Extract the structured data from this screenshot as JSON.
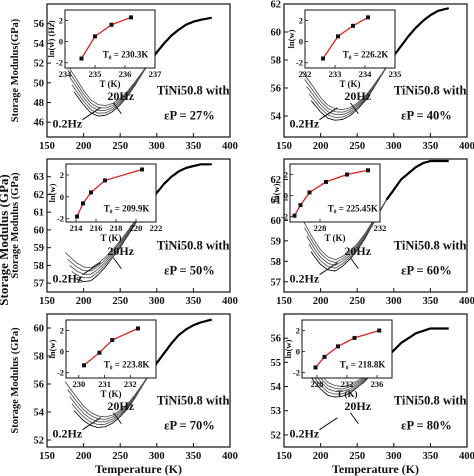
{
  "figure": {
    "ylabel_left": "Storage Modulus (GPa)",
    "xlabel": "Temperature (K)"
  },
  "chart_data": [
    {
      "type": "line",
      "panel": "a",
      "xlim": [
        150,
        400
      ],
      "xticks": [
        150,
        200,
        250,
        300,
        350,
        400
      ],
      "ylim": [
        44.5,
        58
      ],
      "yticks": [
        46,
        48,
        50,
        52,
        54,
        56
      ],
      "xlabel": "",
      "ylabel": "Storage Modulus(GPa)",
      "annotation_alloy": "TiNi50.8 with",
      "annotation_strain": "εP = 27%",
      "freq_high": "20Hz",
      "freq_low": "0.2Hz",
      "curves": {
        "x": [
          175,
          190,
          200,
          210,
          220,
          230,
          240,
          250,
          260,
          270,
          280,
          290,
          300,
          310,
          320,
          330,
          340,
          350,
          360,
          375
        ],
        "y": [
          51.2,
          49.6,
          48.5,
          47.6,
          47.2,
          47.2,
          47.5,
          48.1,
          48.9,
          49.9,
          51,
          52.1,
          53.1,
          54,
          54.8,
          55.4,
          55.9,
          56.2,
          56.4,
          56.6
        ]
      },
      "n_curves": 5,
      "inset": {
        "xlabel": "T (K)",
        "ylabel": "ln(w) (Hz)",
        "xlim": [
          234,
          237
        ],
        "xticks": [
          234,
          235,
          236,
          237
        ],
        "ylim": [
          -2.5,
          3
        ],
        "yticks": [
          -2,
          0,
          2
        ],
        "label": "T₀ = 230.3K",
        "x": [
          234.55,
          235.0,
          235.55,
          236.2
        ],
        "y": [
          -1.6,
          0.5,
          1.6,
          2.3
        ]
      }
    },
    {
      "type": "line",
      "panel": "b",
      "xlim": [
        150,
        400
      ],
      "xticks": [
        150,
        200,
        250,
        300,
        350,
        400
      ],
      "ylim": [
        52.5,
        62
      ],
      "yticks": [
        54,
        56,
        58,
        60,
        62
      ],
      "xlabel": "",
      "ylabel": "",
      "annotation_alloy": "TiNi50.8 with",
      "annotation_strain": "εP = 40%",
      "freq_high": "20Hz",
      "freq_low": "0.2Hz",
      "curves": {
        "x": [
          175,
          190,
          200,
          210,
          220,
          230,
          240,
          250,
          260,
          270,
          280,
          290,
          300,
          310,
          320,
          330,
          340,
          350,
          360,
          375
        ],
        "y": [
          56.5,
          55.5,
          54.8,
          54.3,
          54.1,
          54.1,
          54.3,
          54.7,
          55.2,
          55.9,
          56.7,
          57.5,
          58.3,
          59,
          59.7,
          60.3,
          60.8,
          61.2,
          61.5,
          61.7
        ]
      },
      "n_curves": 5,
      "inset": {
        "xlabel": "T (K)",
        "ylabel": "ln(w)",
        "xlim": [
          232,
          235
        ],
        "xticks": [
          232,
          233,
          234,
          235
        ],
        "ylim": [
          -2.5,
          3
        ],
        "yticks": [
          -2,
          0,
          2
        ],
        "label": "T₀ = 226.2K",
        "x": [
          232.6,
          233.1,
          233.6,
          234.1
        ],
        "y": [
          -1.6,
          0.5,
          1.5,
          2.3
        ]
      }
    },
    {
      "type": "line",
      "panel": "c",
      "xlim": [
        150,
        400
      ],
      "xticks": [
        150,
        200,
        250,
        300,
        350,
        400
      ],
      "ylim": [
        56.5,
        64
      ],
      "yticks": [
        57,
        58,
        59,
        60,
        61,
        62,
        63
      ],
      "xlabel": "",
      "ylabel": "Storage Modulus (GPa)",
      "annotation_alloy": "TiNi50.8 with",
      "annotation_strain": "εP = 50%",
      "freq_high": "20Hz",
      "freq_low": "0.2Hz",
      "curves": {
        "x": [
          175,
          190,
          200,
          210,
          220,
          230,
          240,
          250,
          260,
          270,
          280,
          290,
          300,
          310,
          320,
          330,
          340,
          350,
          360,
          375
        ],
        "y": [
          58.2,
          57.7,
          57.5,
          57.5,
          57.8,
          58.2,
          58.7,
          59.2,
          59.8,
          60.4,
          61,
          61.6,
          62.1,
          62.6,
          63,
          63.3,
          63.5,
          63.6,
          63.7,
          63.7
        ]
      },
      "n_curves": 5,
      "inset": {
        "xlabel": "T (K)",
        "ylabel": "ln(w)",
        "xlim": [
          213,
          222
        ],
        "xticks": [
          214,
          216,
          218,
          220,
          222
        ],
        "ylim": [
          -2.3,
          3
        ],
        "yticks": [
          -2,
          0,
          2
        ],
        "label": "T₀ = 209.9K",
        "x": [
          214.1,
          214.7,
          215.5,
          216.9,
          220.6
        ],
        "y": [
          -1.8,
          -0.6,
          0.4,
          1.5,
          2.5
        ]
      }
    },
    {
      "type": "line",
      "panel": "d",
      "xlim": [
        150,
        400
      ],
      "xticks": [
        150,
        200,
        250,
        300,
        350,
        400
      ],
      "ylim": [
        56.5,
        63
      ],
      "yticks": [
        57,
        58,
        59,
        60,
        61,
        62
      ],
      "xlabel": "",
      "ylabel": "",
      "annotation_alloy": "TiNi50.8 with",
      "annotation_strain": "εP = 60%",
      "freq_high": "20Hz",
      "freq_low": "0.2Hz",
      "curves": {
        "x": [
          175,
          190,
          200,
          210,
          220,
          230,
          240,
          250,
          260,
          270,
          280,
          290,
          300,
          310,
          320,
          330,
          340,
          350,
          360,
          375
        ],
        "y": [
          59.6,
          58.7,
          58.2,
          57.9,
          57.8,
          58,
          58.3,
          58.7,
          59.2,
          59.8,
          60.4,
          61,
          61.5,
          62,
          62.3,
          62.6,
          62.8,
          62.9,
          62.9,
          62.9
        ]
      },
      "n_curves": 5,
      "inset": {
        "xlabel": "T (K)",
        "ylabel": "ln(w)",
        "xlim": [
          226,
          232
        ],
        "xticks": [
          228,
          232
        ],
        "ylim": [
          -2.5,
          3
        ],
        "yticks": [
          -2,
          0,
          2
        ],
        "label": "T₀ = 225.45K",
        "x": [
          226.3,
          226.7,
          227.3,
          228.4,
          229.8,
          231.2
        ],
        "y": [
          -1.9,
          -0.9,
          0.3,
          1.3,
          2.0,
          2.4
        ]
      }
    },
    {
      "type": "line",
      "panel": "e",
      "xlim": [
        150,
        400
      ],
      "xticks": [
        150,
        200,
        250,
        300,
        350,
        400
      ],
      "ylim": [
        51.5,
        61
      ],
      "yticks": [
        52,
        54,
        56,
        58,
        60
      ],
      "xlabel": "Temperature (K)",
      "ylabel": "Storage Modulus (GPa)",
      "annotation_alloy": "TiNi50.8 with",
      "annotation_strain": "εP = 70%",
      "freq_high": "20Hz",
      "freq_low": "0.2Hz",
      "curves": {
        "x": [
          175,
          190,
          200,
          210,
          220,
          230,
          240,
          250,
          260,
          270,
          280,
          290,
          300,
          310,
          320,
          330,
          340,
          350,
          360,
          375
        ],
        "y": [
          55.5,
          54.5,
          53.9,
          53.5,
          53.3,
          53.3,
          53.5,
          53.9,
          54.4,
          55.1,
          55.9,
          56.7,
          57.5,
          58.2,
          58.9,
          59.5,
          59.9,
          60.2,
          60.4,
          60.6
        ]
      },
      "n_curves": 5,
      "inset": {
        "xlabel": "T (K)",
        "ylabel": "ln(w)",
        "xlim": [
          229.5,
          233
        ],
        "xticks": [
          230,
          231,
          232
        ],
        "ylim": [
          -2.5,
          3
        ],
        "yticks": [
          -2,
          0,
          2
        ],
        "label": "T₀ = 223.8K",
        "x": [
          230.2,
          230.8,
          231.3,
          232.3
        ],
        "y": [
          -1.3,
          -0.1,
          1.1,
          2.2
        ]
      }
    },
    {
      "type": "line",
      "panel": "f",
      "xlim": [
        150,
        400
      ],
      "xticks": [
        150,
        200,
        250,
        300,
        350,
        400
      ],
      "ylim": [
        51.5,
        57
      ],
      "yticks": [
        52,
        53,
        54,
        55,
        56
      ],
      "xlabel": "Temperature (K)",
      "ylabel": "",
      "annotation_alloy": "TiNi50.8 with",
      "annotation_strain": "εP = 80%",
      "freq_high": "20Hz",
      "freq_low": "0.2Hz",
      "curves": {
        "x": [
          175,
          190,
          200,
          210,
          220,
          230,
          240,
          250,
          260,
          270,
          280,
          290,
          300,
          310,
          320,
          330,
          340,
          350,
          360,
          375
        ],
        "y": [
          55.2,
          54.6,
          54.2,
          53.9,
          53.8,
          53.8,
          53.9,
          54.1,
          54.3,
          54.6,
          54.9,
          55.2,
          55.5,
          55.8,
          56,
          56.2,
          56.3,
          56.4,
          56.4,
          56.4
        ]
      },
      "n_curves": 5,
      "inset": {
        "xlabel": "T (K)",
        "ylabel": "ln(w)",
        "xlim": [
          226,
          238
        ],
        "xticks": [
          228,
          232,
          236
        ],
        "ylim": [
          -2.5,
          3
        ],
        "yticks": [
          -2,
          0,
          2
        ],
        "label": "T₀ = 218.8K",
        "x": [
          227.8,
          229.0,
          230.8,
          233.0,
          236.3
        ],
        "y": [
          -1.5,
          -0.5,
          0.5,
          1.3,
          2.0
        ]
      }
    }
  ]
}
